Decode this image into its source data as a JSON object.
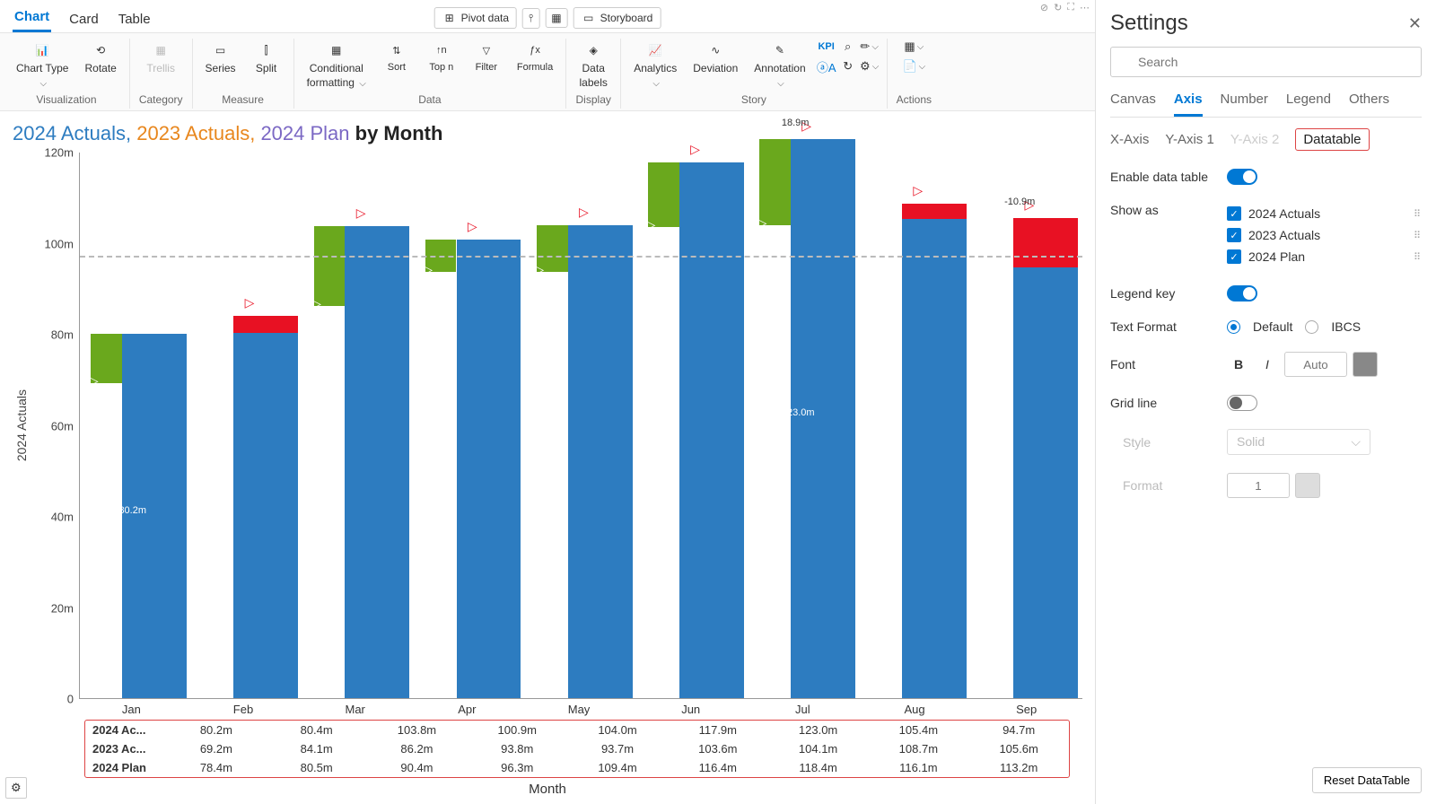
{
  "top_tabs": {
    "chart": "Chart",
    "card": "Card",
    "table": "Table"
  },
  "center_buttons": {
    "pivot": "Pivot data",
    "storyboard": "Storyboard"
  },
  "ribbon": {
    "visualization": {
      "label": "Visualization",
      "chart_type": "Chart Type",
      "rotate": "Rotate"
    },
    "category": {
      "label": "Category",
      "trellis": "Trellis"
    },
    "measure": {
      "label": "Measure",
      "series": "Series",
      "split": "Split"
    },
    "data": {
      "label": "Data",
      "cond_fmt": "Conditional",
      "cond_fmt2": "formatting",
      "sort": "Sort",
      "topn": "Top n",
      "filter": "Filter",
      "formula": "Formula"
    },
    "display": {
      "label": "Display",
      "data_labels": "Data",
      "data_labels2": "labels"
    },
    "story": {
      "label": "Story",
      "analytics": "Analytics",
      "deviation": "Deviation",
      "annotation": "Annotation",
      "kpi": "KPI"
    },
    "actions": {
      "label": "Actions"
    }
  },
  "chart": {
    "title_parts": {
      "a": "2024 Actuals, ",
      "b": "2023 Actuals, ",
      "c": "2024 Plan ",
      "by": "by Month"
    },
    "y_axis_title": "2024 Actuals",
    "x_axis_title": "Month",
    "ylim_max": 120,
    "y_ticks": [
      0,
      "20m",
      "40m",
      "60m",
      "80m",
      "100m",
      "120m"
    ],
    "reference_line": 97,
    "months": [
      "Jan",
      "Feb",
      "Mar",
      "Apr",
      "May",
      "Jun",
      "Jul",
      "Aug",
      "Sep"
    ],
    "actuals_2024": [
      80.2,
      80.4,
      103.8,
      100.9,
      104.0,
      117.9,
      123.0,
      105.4,
      94.7
    ],
    "actuals_2023": [
      69.2,
      84.1,
      86.2,
      93.8,
      93.7,
      103.6,
      104.1,
      108.7,
      105.6
    ],
    "plan_2024": [
      78.4,
      80.5,
      90.4,
      96.3,
      109.4,
      116.4,
      118.4,
      116.1,
      113.2
    ],
    "callouts": {
      "jul_top": "18.9m",
      "jul_mid": "123.0m",
      "jan_mid": "80.2m",
      "sep_top": "-10.9m"
    },
    "colors": {
      "actual_bar": "#2d7cc0",
      "diff_pos": "#6aa81d",
      "diff_neg": "#e81123",
      "gridline": "#bbbbbb",
      "title_a": "#2d7cc0",
      "title_b": "#e8871e",
      "title_c": "#7b68c4"
    }
  },
  "datatable": {
    "rows": [
      {
        "h": "2024 Ac...",
        "v": [
          "80.2m",
          "80.4m",
          "103.8m",
          "100.9m",
          "104.0m",
          "117.9m",
          "123.0m",
          "105.4m",
          "94.7m"
        ]
      },
      {
        "h": "2023 Ac...",
        "v": [
          "69.2m",
          "84.1m",
          "86.2m",
          "93.8m",
          "93.7m",
          "103.6m",
          "104.1m",
          "108.7m",
          "105.6m"
        ]
      },
      {
        "h": "2024 Plan",
        "v": [
          "78.4m",
          "80.5m",
          "90.4m",
          "96.3m",
          "109.4m",
          "116.4m",
          "118.4m",
          "116.1m",
          "113.2m"
        ]
      }
    ]
  },
  "settings": {
    "title": "Settings",
    "search_ph": "Search",
    "tabs": {
      "canvas": "Canvas",
      "axis": "Axis",
      "number": "Number",
      "legend": "Legend",
      "others": "Others"
    },
    "subtabs": {
      "x": "X-Axis",
      "y1": "Y-Axis 1",
      "y2": "Y-Axis 2",
      "dt": "Datatable"
    },
    "fields": {
      "enable": "Enable data table",
      "show_as": "Show as",
      "legend_key": "Legend key",
      "text_fmt": "Text Format",
      "font": "Font",
      "gridline": "Grid line",
      "style": "Style",
      "format": "Format"
    },
    "show_items": [
      "2024 Actuals",
      "2023 Actuals",
      "2024 Plan"
    ],
    "radios": {
      "def": "Default",
      "ibcs": "IBCS"
    },
    "font_auto": "Auto",
    "style_val": "Solid",
    "format_val": "1",
    "reset": "Reset DataTable"
  }
}
